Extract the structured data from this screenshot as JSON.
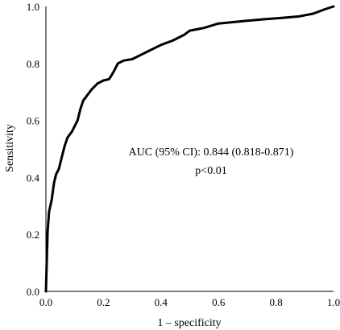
{
  "chart_data": {
    "type": "line",
    "xlabel": "1 – specificity",
    "ylabel": "Sensitivity",
    "xlim": [
      0,
      1
    ],
    "ylim": [
      0,
      1
    ],
    "x_ticks": [
      "0.0",
      "0.2",
      "0.4",
      "0.6",
      "0.8",
      "1.0"
    ],
    "y_ticks": [
      "0.0",
      "0.2",
      "0.4",
      "0.6",
      "0.8",
      "1.0"
    ],
    "grid": false,
    "annotations": [
      "AUC (95% CI): 0.844 (0.818-0.871)",
      "p<0.01"
    ],
    "series": [
      {
        "color": "#000000",
        "points": [
          [
            0,
            0
          ],
          [
            0.003,
            0.11
          ],
          [
            0.006,
            0.21
          ],
          [
            0.011,
            0.28
          ],
          [
            0.02,
            0.32
          ],
          [
            0.028,
            0.38
          ],
          [
            0.035,
            0.41
          ],
          [
            0.045,
            0.43
          ],
          [
            0.055,
            0.47
          ],
          [
            0.065,
            0.51
          ],
          [
            0.075,
            0.54
          ],
          [
            0.09,
            0.56
          ],
          [
            0.1,
            0.58
          ],
          [
            0.11,
            0.6
          ],
          [
            0.12,
            0.64
          ],
          [
            0.13,
            0.67
          ],
          [
            0.145,
            0.69
          ],
          [
            0.16,
            0.71
          ],
          [
            0.18,
            0.73
          ],
          [
            0.2,
            0.74
          ],
          [
            0.22,
            0.745
          ],
          [
            0.235,
            0.77
          ],
          [
            0.25,
            0.8
          ],
          [
            0.27,
            0.81
          ],
          [
            0.3,
            0.815
          ],
          [
            0.33,
            0.83
          ],
          [
            0.36,
            0.845
          ],
          [
            0.4,
            0.865
          ],
          [
            0.44,
            0.88
          ],
          [
            0.48,
            0.9
          ],
          [
            0.5,
            0.915
          ],
          [
            0.55,
            0.925
          ],
          [
            0.6,
            0.94
          ],
          [
            0.65,
            0.945
          ],
          [
            0.7,
            0.95
          ],
          [
            0.76,
            0.955
          ],
          [
            0.82,
            0.96
          ],
          [
            0.88,
            0.965
          ],
          [
            0.93,
            0.975
          ],
          [
            0.97,
            0.99
          ],
          [
            1.0,
            1.0
          ]
        ]
      }
    ]
  }
}
